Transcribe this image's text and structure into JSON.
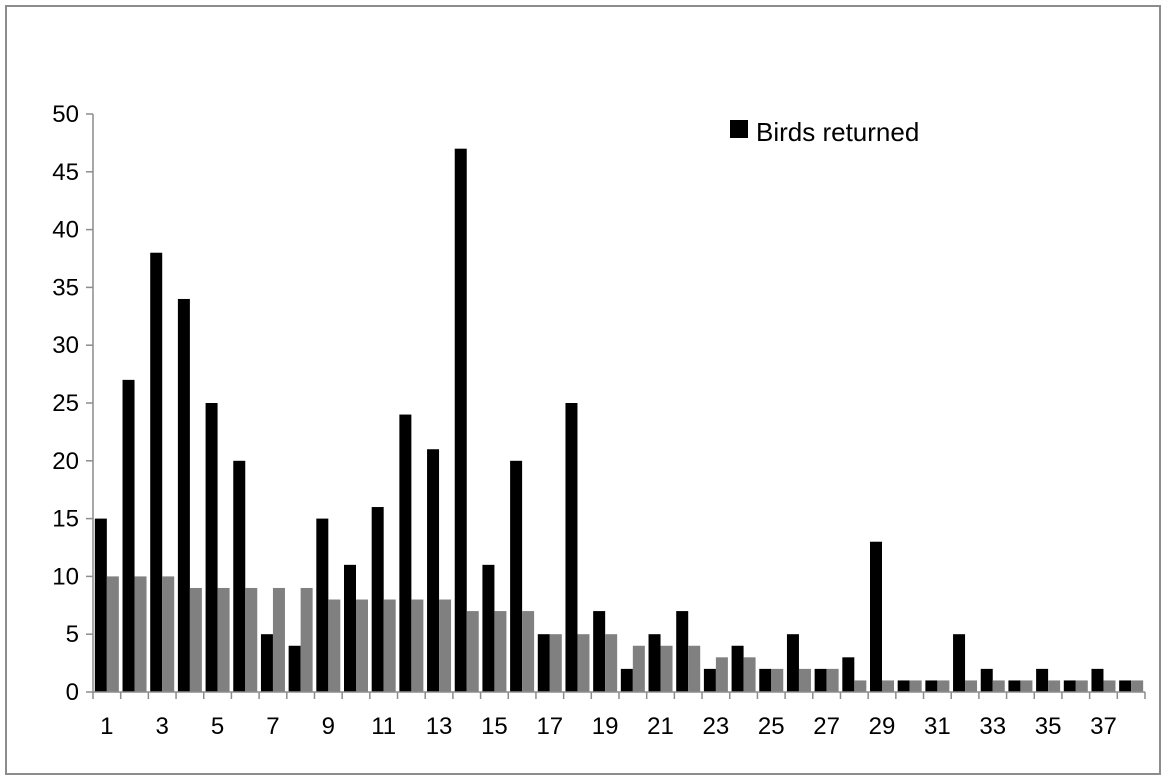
{
  "chart_data": {
    "type": "bar",
    "title": "",
    "xlabel": "",
    "ylabel": "",
    "ylim": [
      0,
      50
    ],
    "y_ticks": [
      0,
      5,
      10,
      15,
      20,
      25,
      30,
      35,
      40,
      45,
      50
    ],
    "x_tick_labels": [
      "1",
      "3",
      "5",
      "7",
      "9",
      "11",
      "13",
      "15",
      "17",
      "19",
      "21",
      "23",
      "25",
      "27",
      "29",
      "31",
      "33",
      "35",
      "37"
    ],
    "categories": [
      "1",
      "2",
      "3",
      "4",
      "5",
      "6",
      "7",
      "8",
      "9",
      "10",
      "11",
      "12",
      "13",
      "14",
      "15",
      "16",
      "17",
      "18",
      "19",
      "20",
      "21",
      "22",
      "23",
      "24",
      "25",
      "26",
      "27",
      "28",
      "29",
      "30",
      "31",
      "32",
      "33",
      "34",
      "35",
      "36",
      "37",
      "38"
    ],
    "series": [
      {
        "name": "Birds returned",
        "color": "#000000",
        "values": [
          15,
          27,
          38,
          34,
          25,
          20,
          5,
          4,
          15,
          11,
          16,
          24,
          21,
          47,
          11,
          20,
          5,
          25,
          7,
          2,
          5,
          7,
          2,
          4,
          2,
          5,
          2,
          3,
          13,
          1,
          1,
          5,
          2,
          1,
          2,
          1,
          2,
          1
        ]
      },
      {
        "color": "#808080",
        "values": [
          10,
          10,
          10,
          9,
          9,
          9,
          9,
          9,
          8,
          8,
          8,
          8,
          8,
          7,
          7,
          7,
          5,
          5,
          5,
          4,
          4,
          4,
          3,
          3,
          2,
          2,
          2,
          1,
          1,
          1,
          1,
          1,
          1,
          1,
          1,
          1,
          1,
          1
        ]
      }
    ],
    "legend": {
      "position": "top-right",
      "label": "Birds returned"
    },
    "grid": false
  }
}
